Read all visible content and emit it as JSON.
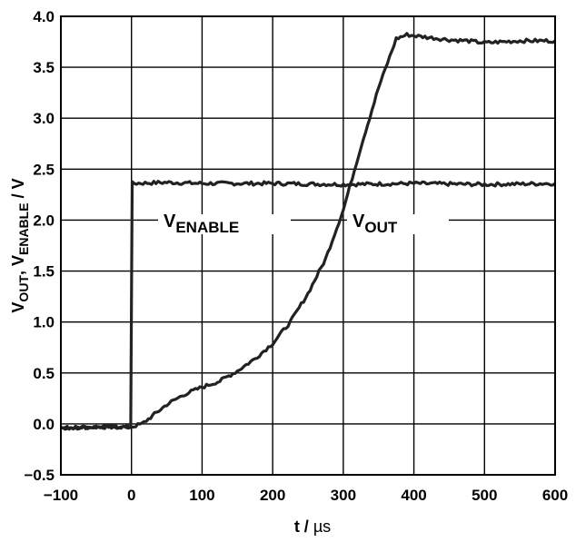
{
  "chart_data": {
    "type": "line",
    "xlabel": {
      "prefix": "t / ",
      "unit": "µs"
    },
    "ylabel": {
      "v": "V",
      "out_sub": "OUT",
      "sep": ", ",
      "enable_sub": "ENABLE",
      "unit": " / V"
    },
    "xlim": [
      -100,
      600
    ],
    "ylim": [
      -0.5,
      4.0
    ],
    "x_ticks": [
      "−100",
      "0",
      "100",
      "200",
      "300",
      "400",
      "500",
      "600"
    ],
    "y_ticks": [
      "−0.5",
      "0.0",
      "0.5",
      "1.0",
      "1.5",
      "2.0",
      "2.5",
      "3.0",
      "3.5",
      "4.0"
    ],
    "grid": true,
    "series": [
      {
        "name": "VENABLE",
        "label_v": "V",
        "label_sub": "ENABLE",
        "x": [
          -100,
          -50,
          -1,
          0,
          1,
          50,
          100,
          200,
          300,
          400,
          500,
          600
        ],
        "y": [
          -0.04,
          -0.03,
          -0.03,
          1.2,
          2.36,
          2.37,
          2.36,
          2.36,
          2.35,
          2.36,
          2.35,
          2.36
        ]
      },
      {
        "name": "VOUT",
        "label_v": "V",
        "label_sub": "OUT",
        "x": [
          -100,
          -50,
          0,
          15,
          30,
          50,
          75,
          100,
          125,
          150,
          175,
          200,
          225,
          250,
          275,
          300,
          325,
          350,
          375,
          390,
          400,
          425,
          450,
          475,
          500,
          525,
          550,
          575,
          600
        ],
        "y": [
          -0.04,
          -0.03,
          -0.03,
          0.0,
          0.08,
          0.19,
          0.29,
          0.36,
          0.42,
          0.52,
          0.64,
          0.79,
          1.0,
          1.28,
          1.62,
          2.1,
          2.72,
          3.3,
          3.78,
          3.82,
          3.81,
          3.79,
          3.77,
          3.76,
          3.74,
          3.75,
          3.76,
          3.76,
          3.76
        ]
      }
    ]
  }
}
